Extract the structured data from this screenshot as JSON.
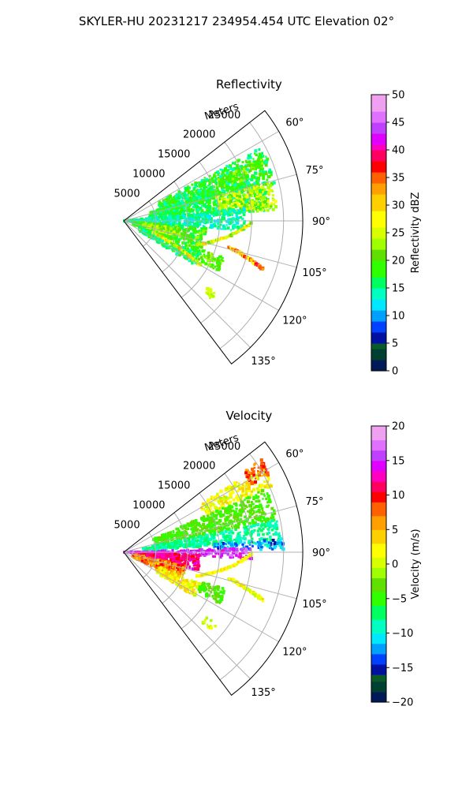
{
  "figure": {
    "title": "SKYLER-HU  20231217  234954.454 UTC Elevation 02°"
  },
  "chart_data": [
    {
      "type": "polar-sector",
      "title": "Reflectivity",
      "radial_axis_label": "Meters",
      "radial_ticks": [
        5000,
        10000,
        15000,
        20000,
        25000
      ],
      "rlim": [
        0,
        28000
      ],
      "azimuth_ticks_deg": [
        60,
        75,
        90,
        105,
        120,
        135
      ],
      "azimuth_tick_labels": [
        "60°",
        "75°",
        "90°",
        "105°",
        "120°",
        "135°"
      ],
      "azimuth_range_deg": [
        52,
        143
      ],
      "grid": true,
      "colorbar": {
        "label": "Reflectivity dBZ",
        "range": [
          0,
          50
        ],
        "ticks": [
          0,
          5,
          10,
          15,
          20,
          25,
          30,
          35,
          40,
          45,
          50
        ],
        "tick_labels": [
          "0",
          "5",
          "10",
          "15",
          "20",
          "25",
          "30",
          "35",
          "40",
          "45",
          "50"
        ],
        "stops": [
          {
            "v": 0,
            "c": "#001a57"
          },
          {
            "v": 2,
            "c": "#004030"
          },
          {
            "v": 4,
            "c": "#0a5a2a"
          },
          {
            "v": 5,
            "c": "#0010a0"
          },
          {
            "v": 7,
            "c": "#0040ff"
          },
          {
            "v": 9,
            "c": "#00a0ff"
          },
          {
            "v": 11,
            "c": "#00e8ff"
          },
          {
            "v": 13,
            "c": "#00ffc0"
          },
          {
            "v": 15,
            "c": "#00ff60"
          },
          {
            "v": 17,
            "c": "#30ff00"
          },
          {
            "v": 20,
            "c": "#60e000"
          },
          {
            "v": 22,
            "c": "#a0ff00"
          },
          {
            "v": 24,
            "c": "#d8ff00"
          },
          {
            "v": 26,
            "c": "#ffff00"
          },
          {
            "v": 29,
            "c": "#ffd000"
          },
          {
            "v": 32,
            "c": "#ffa000"
          },
          {
            "v": 34,
            "c": "#ff6000"
          },
          {
            "v": 36,
            "c": "#ff0000"
          },
          {
            "v": 38,
            "c": "#ff0060"
          },
          {
            "v": 40,
            "c": "#ff00c0"
          },
          {
            "v": 41,
            "c": "#e000ff"
          },
          {
            "v": 43,
            "c": "#c040ff"
          },
          {
            "v": 45,
            "c": "#e070ff"
          },
          {
            "v": 47,
            "c": "#f0a0f0"
          },
          {
            "v": 50,
            "c": "#ffe8ff"
          }
        ]
      },
      "echo_regions": [
        {
          "az": [
            62,
            76
          ],
          "r": [
            6000,
            24500
          ],
          "v": 17,
          "spread": 4
        },
        {
          "az": [
            66,
            72
          ],
          "r": [
            16000,
            24000
          ],
          "v": 21,
          "spread": 3
        },
        {
          "az": [
            72,
            86
          ],
          "r": [
            4000,
            23000
          ],
          "v": 17,
          "spread": 3
        },
        {
          "az": [
            75,
            86
          ],
          "r": [
            15000,
            24000
          ],
          "v": 24,
          "spread": 3
        },
        {
          "az": [
            84,
            95
          ],
          "r": [
            0,
            19000
          ],
          "v": 14,
          "spread": 3
        },
        {
          "az": [
            95,
            112
          ],
          "r": [
            1500,
            13000
          ],
          "v": 19,
          "spread": 4
        },
        {
          "az": [
            98,
            106
          ],
          "r": [
            3000,
            9000
          ],
          "v": 23,
          "spread": 3
        },
        {
          "az": [
            112,
            122
          ],
          "r": [
            2500,
            13000
          ],
          "v": 16,
          "spread": 3
        },
        {
          "az": [
            110,
            118
          ],
          "r": [
            13000,
            17000
          ],
          "v": 20,
          "spread": 3
        },
        {
          "az": [
            128,
            132
          ],
          "r": [
            16500,
            18500
          ],
          "v": 25,
          "spread": 2
        }
      ],
      "echo_lines": [
        {
          "from": [
            112,
            5000
          ],
          "to": [
            120,
            14000
          ],
          "v": 27,
          "spread": 6
        },
        {
          "from": [
            108,
            12000
          ],
          "to": [
            91,
            20000
          ],
          "v": 26,
          "spread": 6
        },
        {
          "from": [
            104,
            17000
          ],
          "to": [
            109,
            23000
          ],
          "v": 33,
          "spread": 6
        }
      ]
    },
    {
      "type": "polar-sector",
      "title": "Velocity",
      "radial_axis_label": "Meters",
      "radial_ticks": [
        5000,
        10000,
        15000,
        20000,
        25000
      ],
      "rlim": [
        0,
        28000
      ],
      "azimuth_ticks_deg": [
        60,
        75,
        90,
        105,
        120,
        135
      ],
      "azimuth_tick_labels": [
        "60°",
        "75°",
        "90°",
        "105°",
        "120°",
        "135°"
      ],
      "azimuth_range_deg": [
        52,
        143
      ],
      "grid": true,
      "colorbar": {
        "label": "Velocity (m/s)",
        "range": [
          -20,
          20
        ],
        "ticks": [
          -20,
          -15,
          -10,
          -5,
          0,
          5,
          10,
          15,
          20
        ],
        "tick_labels": [
          "−20",
          "−15",
          "−10",
          "−5",
          "0",
          "5",
          "10",
          "15",
          "20"
        ],
        "stops": [
          {
            "v": -20,
            "c": "#001a57"
          },
          {
            "v": -18.5,
            "c": "#004030"
          },
          {
            "v": -17,
            "c": "#0a5a2a"
          },
          {
            "v": -16,
            "c": "#0010a0"
          },
          {
            "v": -14.5,
            "c": "#0040ff"
          },
          {
            "v": -13,
            "c": "#00a0ff"
          },
          {
            "v": -11.5,
            "c": "#00e8ff"
          },
          {
            "v": -10,
            "c": "#00ffc0"
          },
          {
            "v": -8,
            "c": "#00ff60"
          },
          {
            "v": -6,
            "c": "#30ff00"
          },
          {
            "v": -4,
            "c": "#60e000"
          },
          {
            "v": -2,
            "c": "#a0ff00"
          },
          {
            "v": -0.5,
            "c": "#d8ff00"
          },
          {
            "v": 1,
            "c": "#ffff00"
          },
          {
            "v": 3,
            "c": "#ffd000"
          },
          {
            "v": 5,
            "c": "#ffa000"
          },
          {
            "v": 7,
            "c": "#ff6000"
          },
          {
            "v": 9,
            "c": "#ff0000"
          },
          {
            "v": 10.5,
            "c": "#ff0060"
          },
          {
            "v": 12,
            "c": "#ff00c0"
          },
          {
            "v": 13.5,
            "c": "#e000ff"
          },
          {
            "v": 15,
            "c": "#c040ff"
          },
          {
            "v": 16.5,
            "c": "#e070ff"
          },
          {
            "v": 18,
            "c": "#f0a0f0"
          },
          {
            "v": 20,
            "c": "#ffe8ff"
          }
        ]
      },
      "echo_regions": [
        {
          "az": [
            58,
            66
          ],
          "r": [
            14000,
            25500
          ],
          "v": 2,
          "spread": 3
        },
        {
          "az": [
            56,
            62
          ],
          "r": [
            22500,
            26000
          ],
          "v": 8,
          "spread": 2
        },
        {
          "az": [
            66,
            78
          ],
          "r": [
            5000,
            24500
          ],
          "v": -4,
          "spread": 2
        },
        {
          "az": [
            78,
            86
          ],
          "r": [
            3000,
            24500
          ],
          "v": -8,
          "spread": 2
        },
        {
          "az": [
            85,
            89
          ],
          "r": [
            14000,
            25000
          ],
          "v": -12,
          "spread": 3
        },
        {
          "az": [
            88,
            93
          ],
          "r": [
            0,
            20000
          ],
          "v": 15,
          "spread": 2
        },
        {
          "az": [
            92,
            104
          ],
          "r": [
            2000,
            12000
          ],
          "v": 12,
          "spread": 2
        },
        {
          "az": [
            102,
            118
          ],
          "r": [
            1500,
            10000
          ],
          "v": 7,
          "spread": 3
        },
        {
          "az": [
            112,
            122
          ],
          "r": [
            6000,
            13000
          ],
          "v": 2,
          "spread": 3
        },
        {
          "az": [
            110,
            118
          ],
          "r": [
            13000,
            17000
          ],
          "v": -4,
          "spread": 2
        },
        {
          "az": [
            128,
            132
          ],
          "r": [
            16500,
            18500
          ],
          "v": 1,
          "spread": 2
        }
      ],
      "echo_lines": [
        {
          "from": [
            108,
            12000
          ],
          "to": [
            91,
            20000
          ],
          "v": 2,
          "spread": 2
        },
        {
          "from": [
            104,
            17000
          ],
          "to": [
            109,
            23000
          ],
          "v": 1,
          "spread": 3
        }
      ]
    }
  ]
}
